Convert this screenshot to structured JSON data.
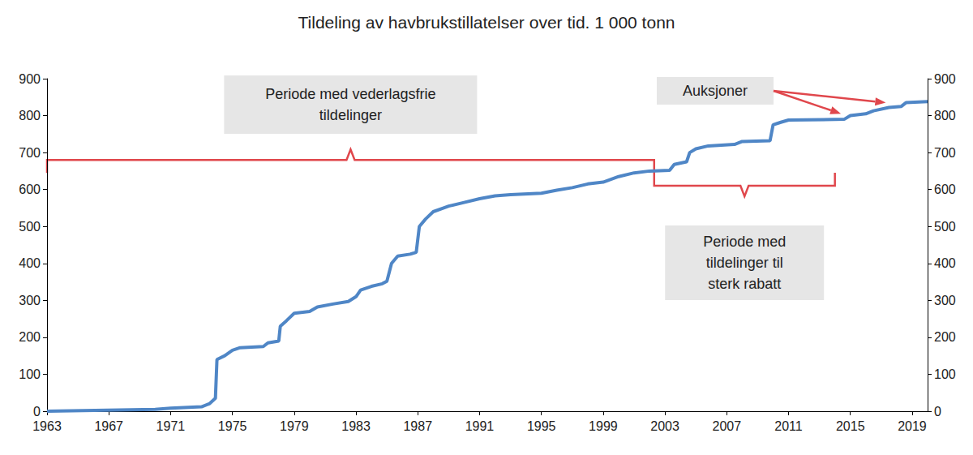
{
  "chart_data": {
    "type": "line",
    "title": "Tildeling av havbrukstillatelser over tid. 1 000 tonn",
    "x": [
      1963,
      1970,
      1971,
      1973.0,
      1973.5,
      1973.9,
      1974.0,
      1974.5,
      1975.0,
      1975.5,
      1977.0,
      1977.3,
      1978.0,
      1978.1,
      1978.5,
      1979.0,
      1980.0,
      1980.5,
      1981.5,
      1982.5,
      1983.0,
      1983.3,
      1984.0,
      1984.7,
      1985.0,
      1985.3,
      1985.7,
      1986.5,
      1986.9,
      1987.1,
      1987.5,
      1988,
      1989,
      1990,
      1991,
      1992,
      1993,
      1995,
      1996,
      1997,
      1998,
      1999,
      2000,
      2001,
      2002,
      2003.3,
      2003.6,
      2004.4,
      2004.6,
      2005,
      2005.8,
      2007.5,
      2008,
      2009.8,
      2010,
      2010.5,
      2011,
      2014.6,
      2015,
      2016,
      2016.5,
      2017.5,
      2018.3,
      2018.6,
      2020
    ],
    "values": [
      0,
      5,
      8,
      12,
      20,
      35,
      140,
      150,
      165,
      172,
      175,
      185,
      190,
      230,
      245,
      265,
      270,
      282,
      290,
      297,
      310,
      328,
      338,
      345,
      352,
      400,
      420,
      425,
      430,
      500,
      520,
      540,
      555,
      565,
      575,
      583,
      586,
      590,
      598,
      605,
      615,
      620,
      635,
      645,
      650,
      652,
      668,
      675,
      700,
      710,
      718,
      722,
      730,
      732,
      775,
      782,
      788,
      790,
      800,
      805,
      813,
      822,
      825,
      835,
      838
    ],
    "color": "#4f86c6",
    "xlim": [
      1963,
      2020
    ],
    "xticks": [
      1963,
      1967,
      1971,
      1975,
      1979,
      1983,
      1987,
      1991,
      1995,
      1999,
      2003,
      2007,
      2011,
      2015,
      2019
    ],
    "ylim": [
      0,
      900
    ],
    "yticks": [
      0,
      100,
      200,
      300,
      400,
      500,
      600,
      700,
      800,
      900
    ],
    "y2lim": [
      0,
      900
    ],
    "y2ticks": [
      0,
      100,
      200,
      300,
      400,
      500,
      600,
      700,
      800,
      900
    ],
    "grid": false,
    "annotations": [
      {
        "text": "Periode med vederlagsfrie\ntildelinger",
        "x_range": [
          1963,
          2002.3
        ],
        "y": 680
      },
      {
        "text": "Periode med\ntildelinger til\nsterk rabatt",
        "x_range": [
          2002.3,
          2014
        ],
        "y": 610
      },
      {
        "text": "Auksjoner",
        "points": [
          [
            2014.6,
            792
          ],
          [
            2017.5,
            822
          ]
        ]
      }
    ]
  }
}
